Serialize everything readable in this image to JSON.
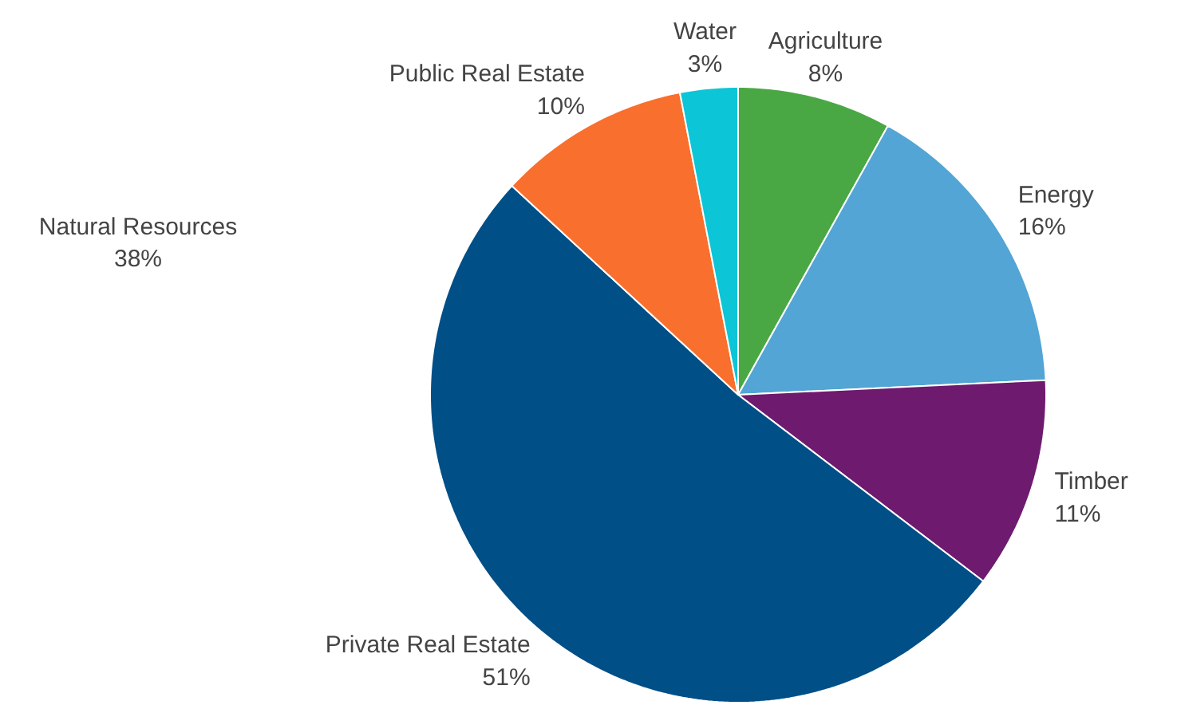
{
  "chart_data": {
    "type": "pie",
    "categories": [
      "Agriculture",
      "Energy",
      "Timber",
      "Private Real Estate",
      "Public Real Estate",
      "Water"
    ],
    "values": [
      8,
      16,
      11,
      51,
      10,
      3
    ],
    "colors": [
      "#4aa844",
      "#52a5d4",
      "#6e1a6e",
      "#004f87",
      "#f96f2d",
      "#0cc5d6"
    ],
    "value_labels": [
      "8%",
      "16%",
      "11%",
      "51%",
      "10%",
      "3%"
    ],
    "annotations": [
      "Natural Resources\n38%"
    ]
  }
}
